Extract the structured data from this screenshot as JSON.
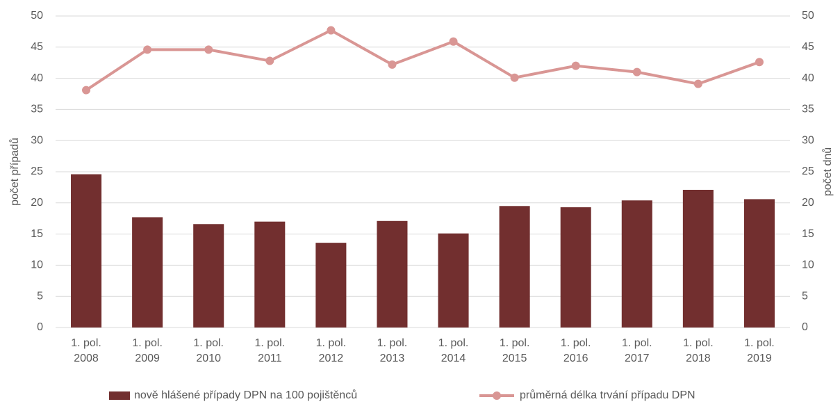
{
  "chart_data": {
    "type": "bar",
    "categories": [
      "1. pol. 2008",
      "1. pol. 2009",
      "1. pol. 2010",
      "1. pol. 2011",
      "1. pol. 2012",
      "1. pol. 2013",
      "1. pol. 2014",
      "1. pol. 2015",
      "1. pol. 2016",
      "1. pol. 2017",
      "1. pol. 2018",
      "1. pol. 2019"
    ],
    "series": [
      {
        "name": "nově hlášené případy DPN na 100 pojištěnců",
        "type": "bar",
        "axis": "y",
        "color": "#722f2f",
        "values": [
          24.6,
          17.7,
          16.6,
          17.0,
          13.6,
          17.1,
          15.1,
          19.5,
          19.3,
          20.4,
          22.1,
          20.6
        ]
      },
      {
        "name": "průměrná délka trvání případu DPN",
        "type": "line",
        "axis": "y2",
        "color": "#d99694",
        "values": [
          38.1,
          44.6,
          44.6,
          42.8,
          47.7,
          42.2,
          45.9,
          40.1,
          42.0,
          41.0,
          39.1,
          42.6
        ]
      }
    ],
    "ylabel": "počet případů",
    "y2label": "počet dnů",
    "ylim": [
      0,
      50
    ],
    "yticks": [
      0,
      5,
      10,
      15,
      20,
      25,
      30,
      35,
      40,
      45,
      50
    ],
    "y2lim": [
      0,
      50
    ],
    "y2ticks": [
      0,
      5,
      10,
      15,
      20,
      25,
      30,
      35,
      40,
      45,
      50
    ],
    "grid": true,
    "legend": "bottom"
  }
}
